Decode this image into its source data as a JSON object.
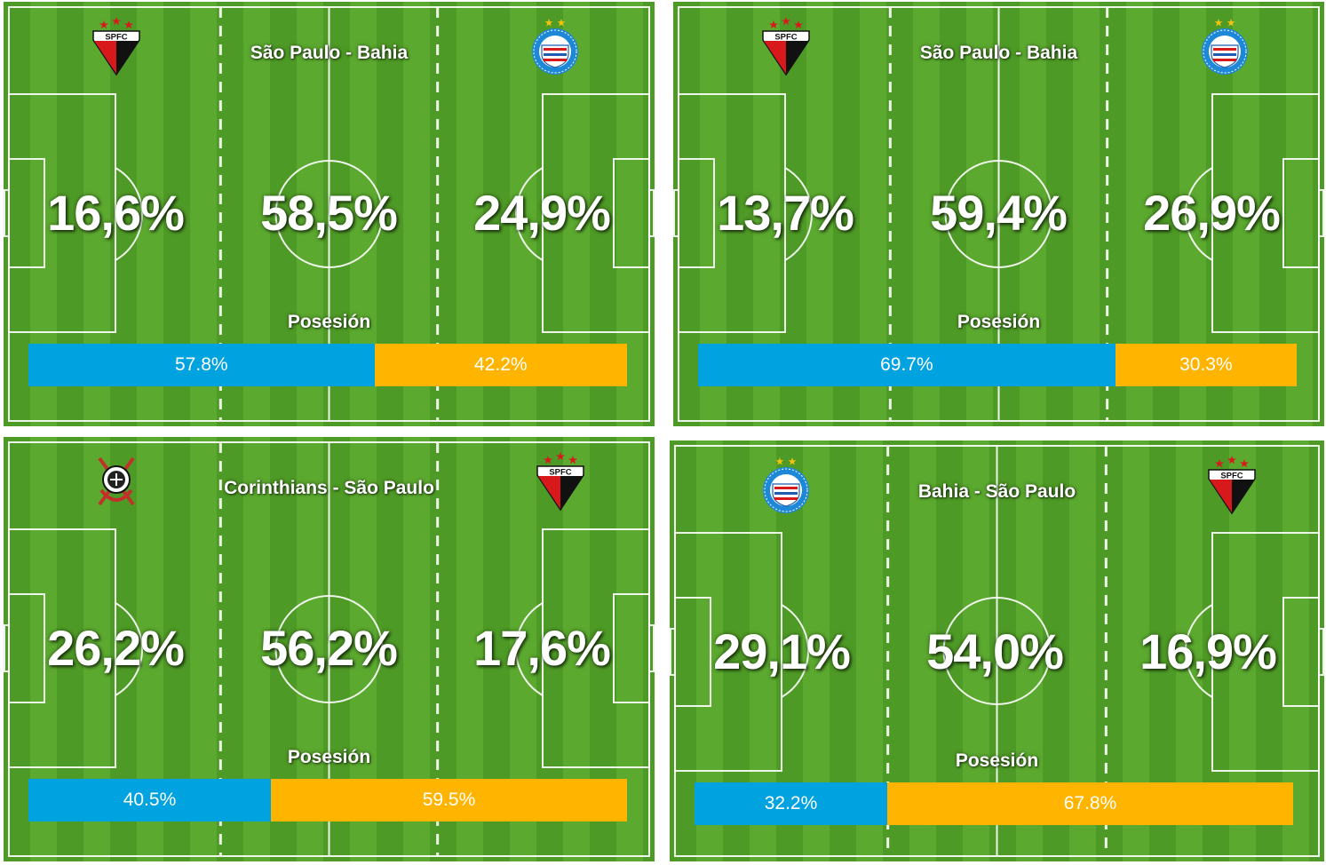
{
  "colors": {
    "home_bar": "#00a3e0",
    "away_bar": "#ffb400",
    "pitch_light": "#5ba92f",
    "pitch_dark": "#4e9a26"
  },
  "possession_label": "Posesión",
  "panels": [
    {
      "title": "São Paulo - Bahia",
      "home_crest": "spfc-crest-icon",
      "away_crest": "bahia-crest-icon",
      "zones": [
        "16,6%",
        "58,5%",
        "24,9%"
      ],
      "possession": {
        "home": "57.8%",
        "away": "42.2%",
        "home_value": 57.8,
        "away_value": 42.2
      }
    },
    {
      "title": "São Paulo - Bahia",
      "home_crest": "spfc-crest-icon",
      "away_crest": "bahia-crest-icon",
      "zones": [
        "13,7%",
        "59,4%",
        "26,9%"
      ],
      "possession": {
        "home": "69.7%",
        "away": "30.3%",
        "home_value": 69.7,
        "away_value": 30.3
      }
    },
    {
      "title": "Corinthians - São Paulo",
      "home_crest": "corinthians-crest-icon",
      "away_crest": "spfc-crest-icon",
      "zones": [
        "26,2%",
        "56,2%",
        "17,6%"
      ],
      "possession": {
        "home": "40.5%",
        "away": "59.5%",
        "home_value": 40.5,
        "away_value": 59.5
      }
    },
    {
      "title": "Bahia - São Paulo",
      "home_crest": "bahia-crest-icon",
      "away_crest": "spfc-crest-icon",
      "zones": [
        "29,1%",
        "54,0%",
        "16,9%"
      ],
      "possession": {
        "home": "32.2%",
        "away": "67.8%",
        "home_value": 32.2,
        "away_value": 67.8
      }
    }
  ]
}
